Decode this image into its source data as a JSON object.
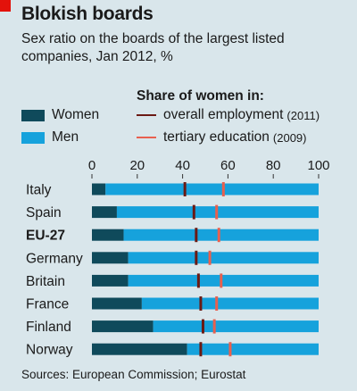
{
  "header": {
    "title": "Blokish boards",
    "subtitle": "Sex ratio on the boards of the largest listed companies, Jan 2012, %"
  },
  "legend": {
    "series_women": "Women",
    "series_men": "Men",
    "share_heading": "Share of women in:",
    "marker_employment": "overall employment",
    "marker_employment_year": "(2011)",
    "marker_education": "tertiary education",
    "marker_education_year": "(2009)"
  },
  "source": "Sources: European Commission; Eurostat",
  "colors": {
    "women": "#0f4a5b",
    "men": "#16a2dc",
    "employment_marker": "#6b1a14",
    "education_marker": "#e8604f",
    "background": "#d9e6eb"
  },
  "chart_data": {
    "type": "bar",
    "orientation": "horizontal",
    "stacked": true,
    "xlim": [
      0,
      100
    ],
    "xticks": [
      0,
      20,
      40,
      60,
      80,
      100
    ],
    "categories": [
      "Italy",
      "Spain",
      "EU-27",
      "Germany",
      "Britain",
      "France",
      "Finland",
      "Norway"
    ],
    "bold_categories": [
      "EU-27"
    ],
    "series": [
      {
        "name": "Women",
        "values": [
          6,
          11,
          14,
          16,
          16,
          22,
          27,
          42
        ]
      },
      {
        "name": "Men",
        "values": [
          94,
          89,
          86,
          84,
          84,
          78,
          73,
          58
        ]
      }
    ],
    "markers": [
      {
        "name": "overall employment (2011)",
        "values": [
          41,
          45,
          46,
          46,
          47,
          48,
          49,
          48
        ]
      },
      {
        "name": "tertiary education (2009)",
        "values": [
          58,
          55,
          56,
          52,
          57,
          55,
          54,
          61
        ]
      }
    ]
  }
}
